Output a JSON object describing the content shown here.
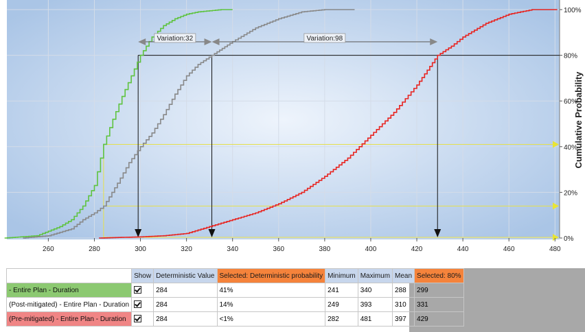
{
  "chart_data": {
    "type": "line",
    "title": "",
    "xlabel": "",
    "ylabel": "Cumulative Probability",
    "xlim": [
      242,
      482
    ],
    "ylim": [
      0,
      100
    ],
    "x_ticks": [
      "260",
      "280",
      "300",
      "320",
      "340",
      "360",
      "380",
      "400",
      "420",
      "440",
      "460",
      "480"
    ],
    "y_ticks": [
      "0%",
      "20%",
      "40%",
      "60%",
      "80%",
      "100%"
    ],
    "grid": true,
    "legend": "none",
    "series": [
      {
        "color": "#5ec33e",
        "x": [
          241,
          255,
          265,
          270,
          275,
          280,
          284,
          288,
          292,
          296,
          300,
          305,
          310,
          315,
          320,
          325,
          330,
          335,
          340
        ],
        "y": [
          0,
          1,
          5,
          8,
          14,
          23,
          41,
          52,
          62,
          71,
          80,
          88,
          93,
          96,
          98,
          99,
          99.5,
          100,
          100
        ]
      },
      {
        "color": "#888888",
        "x": [
          249,
          260,
          270,
          275,
          280,
          284,
          290,
          295,
          300,
          305,
          310,
          315,
          320,
          325,
          331,
          340,
          350,
          360,
          370,
          380,
          393
        ],
        "y": [
          0,
          1,
          4,
          8,
          11,
          14,
          24,
          33,
          40,
          46,
          54,
          63,
          71,
          76,
          80,
          86,
          92,
          96,
          99,
          100,
          100
        ]
      },
      {
        "color": "#e8231f",
        "x": [
          282,
          300,
          310,
          320,
          330,
          340,
          350,
          360,
          370,
          380,
          390,
          400,
          410,
          420,
          429,
          435,
          440,
          450,
          460,
          470,
          481
        ],
        "y": [
          0,
          0.5,
          1,
          2,
          5,
          8,
          11,
          15,
          20,
          27,
          35,
          45,
          55,
          67,
          80,
          84,
          88,
          94,
          98,
          100,
          100
        ]
      }
    ],
    "reference_lines": {
      "y80": 80,
      "deterministic_x": 284,
      "deterministic_y": [
        0,
        14,
        41
      ],
      "drops": [
        {
          "x": 299,
          "color": "#111111"
        },
        {
          "x": 331,
          "color": "#111111"
        },
        {
          "x": 429,
          "color": "#111111"
        }
      ]
    },
    "annotations": [
      {
        "text": "Variation:32",
        "from": 299,
        "to": 331,
        "y": 85
      },
      {
        "text": "Variation:98",
        "from": 331,
        "to": 429,
        "y": 85
      }
    ]
  },
  "table": {
    "headers": [
      "Show",
      "Deterministic Value",
      "Selected: Deterministic probability",
      "Minimum",
      "Maximum",
      "Mean",
      "Selected: 80%"
    ],
    "rows": [
      {
        "label": "- Entire Plan - Duration",
        "color": "#8cc971",
        "deterministic": "284",
        "probability": "41%",
        "min": "241",
        "max": "340",
        "mean": "288",
        "selected": "299"
      },
      {
        "label": "(Post-mitigated) - Entire Plan - Duration",
        "color": "#ffffff",
        "deterministic": "284",
        "probability": "14%",
        "min": "249",
        "max": "393",
        "mean": "310",
        "selected": "331"
      },
      {
        "label": "(Pre-mitigated) - Entire Plan - Duration",
        "color": "#f08585",
        "deterministic": "284",
        "probability": "<1%",
        "min": "282",
        "max": "481",
        "mean": "397",
        "selected": "429"
      }
    ]
  }
}
